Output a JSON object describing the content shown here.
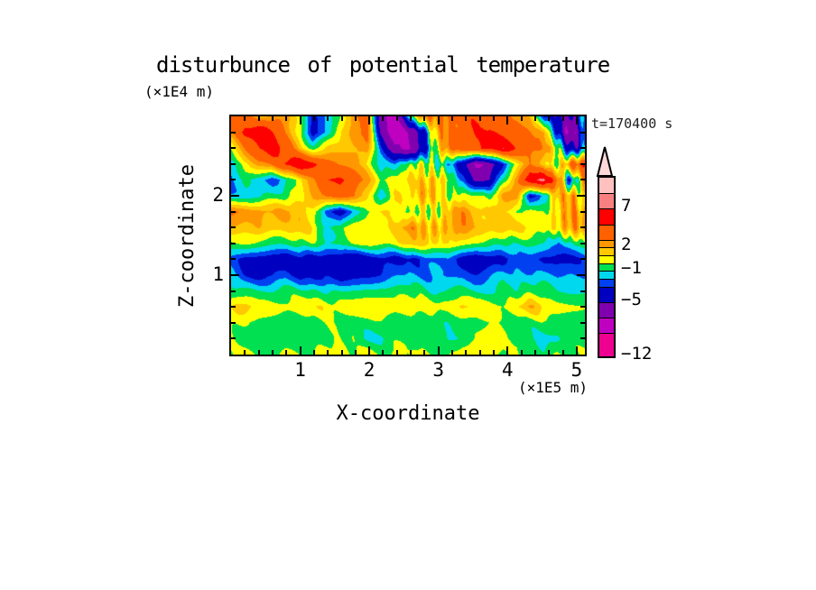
{
  "title": "disturbunce of potential temperature",
  "y_axis_unit": "(×1E4 m)",
  "x_axis_unit": "(×1E5 m)",
  "y_axis_label": "Z-coordinate",
  "x_axis_label": "X-coordinate",
  "time_annotation": "t=170400 s",
  "colors": {
    "background": "#ffffff",
    "frame": "#000000",
    "annotation_text": "#222222"
  },
  "chart_data": {
    "type": "heatmap",
    "title": "disturbunce of potential temperature",
    "xlabel": "X-coordinate",
    "ylabel": "Z-coordinate",
    "x_unit": "(×1E5 m)",
    "y_unit": "(×1E4 m)",
    "annotation": "t=170400 s",
    "x_range": [
      0,
      5.12
    ],
    "z_range": [
      0,
      3.0
    ],
    "x_tick_values": [
      1,
      2,
      3,
      4,
      5
    ],
    "x_tick_labels": [
      "1",
      "2",
      "3",
      "4",
      "5"
    ],
    "y_tick_values": [
      1,
      2
    ],
    "y_tick_labels": [
      "1",
      "2"
    ],
    "minor_tick_step": 0.2,
    "grid_on": false,
    "legend_position": "right-colorbar",
    "levels": [
      -12,
      -9,
      -7,
      -5,
      -3,
      -2,
      -1,
      0,
      1,
      2,
      3,
      5,
      7,
      9,
      11
    ],
    "palette": [
      "#ee0090",
      "#c000c0",
      "#8000b0",
      "#0000c0",
      "#0040f0",
      "#00d8f0",
      "#00e050",
      "#ffff00",
      "#ffc800",
      "#ff9800",
      "#ff6000",
      "#ff0000",
      "#f88080",
      "#ffc0c0"
    ],
    "arrow_color": "#ffd8d8",
    "colorbar_label_values": [
      7,
      2,
      -1,
      -5,
      -12
    ],
    "colorbar_labels": [
      "7",
      "2",
      "−1",
      "−5",
      "−12"
    ],
    "grid": {
      "nx": 27,
      "nz": 16,
      "z_order": "top_to_bottom",
      "values": [
        [
          5,
          4,
          1.5,
          3,
          3,
          0,
          -4,
          -2,
          0,
          3,
          4,
          -6,
          -8,
          -2,
          2,
          3,
          3.5,
          4,
          4.5,
          4,
          4,
          3,
          2,
          -3,
          -5,
          -6,
          -2
        ],
        [
          3,
          6,
          6.5,
          5,
          3,
          1,
          -4.5,
          -2,
          1,
          3,
          4,
          -5,
          -9,
          -7,
          -5,
          1,
          3,
          4,
          5,
          5,
          4.5,
          4,
          3,
          2,
          -4,
          -8,
          -3
        ],
        [
          0,
          3,
          5,
          6,
          4,
          2,
          0,
          1,
          1,
          2,
          3,
          -3,
          -7,
          -8,
          -5,
          0,
          3,
          4,
          5,
          5.5,
          6.5,
          5,
          4,
          3,
          0,
          -5,
          -2
        ],
        [
          -2,
          0,
          2,
          3,
          5,
          6.5,
          6,
          4.5,
          3,
          2,
          1,
          -1,
          -2,
          -1,
          1,
          0,
          -1,
          -4,
          -7,
          -6,
          -3,
          0,
          3,
          2,
          0,
          3,
          5
        ],
        [
          -2,
          -1,
          -2,
          -2.5,
          -1,
          1,
          3,
          5.5,
          6,
          4,
          2,
          0,
          1,
          1,
          1,
          2,
          1,
          -2,
          -6,
          -5,
          -1,
          2,
          6,
          7.5,
          4,
          -3,
          2
        ],
        [
          -1.5,
          -1,
          -1.5,
          -1,
          0,
          1,
          2,
          3,
          4,
          3,
          1,
          -2.5,
          1,
          1,
          2,
          1,
          0,
          1,
          0,
          -1,
          2,
          3,
          -4,
          -2,
          2,
          3,
          1
        ],
        [
          3,
          3,
          3,
          2,
          2,
          2,
          1,
          -3,
          -4.5,
          -2,
          0,
          1,
          1,
          0,
          1,
          0,
          1,
          3,
          2,
          1,
          1,
          0,
          1,
          0,
          1,
          3,
          2
        ],
        [
          2,
          1.5,
          2.5,
          2,
          1.5,
          1.5,
          1,
          -1,
          -1,
          0.5,
          1,
          1,
          1.5,
          3,
          2.5,
          2,
          1.5,
          2.5,
          1.5,
          2,
          2,
          1,
          1,
          1,
          1,
          2,
          2
        ],
        [
          0,
          0.5,
          0,
          -0.5,
          -0.5,
          -0.5,
          -0.5,
          -1,
          -0.5,
          0,
          0,
          0.5,
          0.8,
          1.4,
          1.2,
          0.8,
          0.5,
          0,
          -0.5,
          -0.5,
          -0.5,
          -0.5,
          -1,
          -1,
          -1.5,
          -1,
          -1
        ],
        [
          -2,
          -3.5,
          -4,
          -4.5,
          -4.5,
          -4,
          -4.5,
          -4,
          -4,
          -4.5,
          -4,
          -4,
          -3.5,
          -3,
          -3,
          -2.5,
          -2,
          -3.5,
          -4,
          -3.5,
          -3,
          -2,
          -2.5,
          -3.5,
          -3.5,
          -3,
          -2.5
        ],
        [
          -1.5,
          -3,
          -3.5,
          -3.5,
          -3,
          -3.5,
          -3.5,
          -3,
          -3.5,
          -3,
          -3,
          -3,
          -2.5,
          -2,
          -2,
          -2,
          -2.5,
          -2,
          -2.5,
          -2,
          -1.5,
          -2,
          -2,
          -2,
          -2.5,
          -2,
          -2
        ],
        [
          -1,
          -0.7,
          -1,
          -0.7,
          -0.7,
          -1,
          -0.7,
          -0.7,
          -1,
          -0.7,
          -0.7,
          -0.7,
          -1,
          -0.7,
          -0.7,
          -1.2,
          -0.7,
          -0.7,
          -1,
          -0.7,
          -0.7,
          -1.2,
          -0.7,
          -0.7,
          -1.3,
          -1.3,
          -1
        ],
        [
          0.8,
          1.2,
          0.5,
          0.5,
          0.6,
          0.7,
          0.7,
          0.8,
          0.7,
          0.6,
          0.7,
          0.6,
          0.4,
          0.5,
          0.6,
          0.7,
          0.6,
          1.5,
          0.7,
          0.6,
          0.5,
          0.8,
          1.8,
          1,
          0.5,
          0.4,
          0.3
        ],
        [
          0,
          -0.3,
          -0.3,
          -0.3,
          -0.3,
          -0.3,
          -0.3,
          -0.3,
          -0.3,
          -0.3,
          -0.5,
          -0.3,
          -0.3,
          -0.3,
          -0.3,
          -0.3,
          -0.5,
          -0.3,
          -0.3,
          -0.3,
          -0.3,
          -0.3,
          -0.3,
          -0.5,
          -0.3,
          -0.3,
          -0.3
        ],
        [
          -0.3,
          -0.3,
          -0.5,
          -0.3,
          -0.3,
          -0.3,
          -0.3,
          -0.5,
          -0.3,
          -0.3,
          -1.3,
          -1.2,
          -0.5,
          -0.3,
          -0.3,
          -0.5,
          -1.2,
          -1.2,
          -0.5,
          -0.3,
          -0.3,
          -0.3,
          -0.5,
          -1.2,
          -1.2,
          -0.5,
          -0.3
        ],
        [
          -0.3,
          0.4,
          -0.2,
          -0.3,
          0.4,
          -0.2,
          -0.3,
          0.4,
          -0.2,
          -0.3,
          0.4,
          -0.3,
          0.3,
          -0.3,
          0.4,
          -0.2,
          -0.3,
          0.4,
          -0.3,
          0.3,
          -0.3,
          0.4,
          -0.2,
          -0.3,
          0.4,
          -0.3,
          -0.2
        ]
      ]
    },
    "render_hints": {
      "wave_ripple_amp": [
        0.38,
        0.22
      ],
      "vertical_wave_centers_x": [
        2.92,
        4.93
      ],
      "vertical_wave_amp": [
        1.15,
        1.25
      ],
      "vertical_wave_min_z": 1.35
    }
  }
}
